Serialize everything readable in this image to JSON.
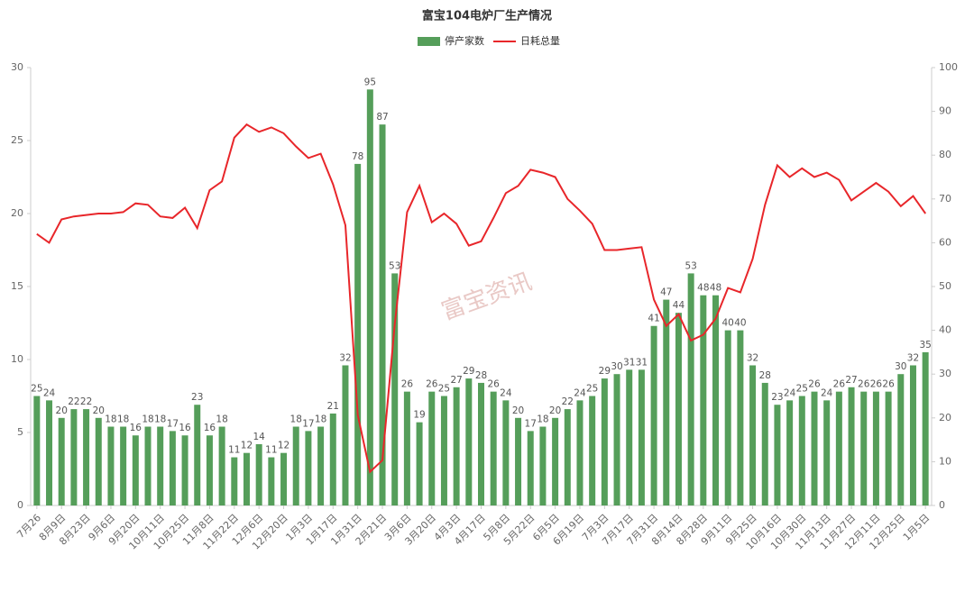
{
  "chart_data": {
    "type": "bar_line",
    "title": "富宝104电炉厂生产情况",
    "watermark": "富宝资讯",
    "categories": [
      "7月26",
      null,
      "8月9日",
      null,
      "8月23日",
      null,
      "9月6日",
      null,
      "9月20日",
      null,
      "10月11日",
      null,
      "10月25日",
      null,
      "11月8日",
      null,
      "11月22日",
      null,
      "12月6日",
      null,
      "12月20日",
      null,
      "1月3日",
      null,
      "1月17日",
      null,
      "1月31日",
      null,
      "2月21日",
      null,
      "3月6日",
      null,
      "3月20日",
      null,
      "4月3日",
      null,
      "4月17日",
      null,
      "5月8日",
      null,
      "5月22日",
      null,
      "6月5日",
      null,
      "6月19日",
      null,
      "7月3日",
      null,
      "7月17日",
      null,
      "7月31日",
      null,
      "8月14日",
      null,
      "8月28日",
      null,
      "9月11日",
      null,
      "9月25日",
      null,
      "10月16日",
      null,
      "10月30日",
      null,
      "11月13日",
      null,
      "11月27日",
      null,
      "12月11日",
      null,
      "12月25日",
      null,
      "1月5日"
    ],
    "series": [
      {
        "name": "停产家数",
        "type": "bar",
        "axis": "y2",
        "color": "#559e5a",
        "values": [
          25,
          24,
          20,
          22,
          22,
          20,
          18,
          18,
          16,
          18,
          18,
          17,
          16,
          23,
          16,
          18,
          11,
          12,
          14,
          11,
          12,
          18,
          17,
          18,
          21,
          32,
          78,
          95,
          87,
          53,
          26,
          19,
          26,
          25,
          27,
          29,
          28,
          26,
          24,
          20,
          17,
          18,
          20,
          22,
          24,
          25,
          29,
          30,
          31,
          31,
          41,
          47,
          44,
          53,
          48,
          48,
          40,
          40,
          32,
          28,
          23,
          24,
          25,
          26,
          24,
          26,
          27,
          26,
          26,
          26,
          30,
          32,
          35
        ]
      },
      {
        "name": "日耗总量",
        "type": "line",
        "axis": "y",
        "color": "#e8262a",
        "values": [
          18.6,
          18.0,
          19.6,
          19.8,
          19.9,
          20.0,
          20.0,
          20.1,
          20.7,
          20.6,
          19.8,
          19.7,
          20.4,
          19.0,
          21.6,
          22.2,
          25.2,
          26.1,
          25.6,
          25.9,
          25.5,
          24.6,
          23.8,
          24.1,
          22.0,
          19.2,
          6.2,
          2.3,
          3.1,
          12.4,
          20.1,
          21.9,
          19.4,
          20.0,
          19.3,
          17.8,
          18.1,
          19.7,
          21.4,
          21.9,
          23.0,
          22.8,
          22.5,
          21.0,
          20.2,
          19.3,
          17.5,
          17.5,
          17.6,
          17.7,
          14.1,
          12.3,
          13.1,
          11.3,
          11.7,
          12.8,
          14.9,
          14.6,
          16.9,
          20.6,
          23.3,
          22.5,
          23.1,
          22.5,
          22.8,
          22.3,
          20.9,
          21.5,
          22.1,
          21.5,
          20.5,
          21.2,
          20.0
        ]
      }
    ],
    "ylim": [
      0,
      30
    ],
    "yticks": [
      0,
      5,
      10,
      15,
      20,
      25,
      30
    ],
    "y2lim": [
      0,
      100
    ],
    "y2ticks": [
      0,
      10,
      20,
      30,
      40,
      50,
      60,
      70,
      80,
      90,
      100
    ],
    "legend": "top"
  }
}
